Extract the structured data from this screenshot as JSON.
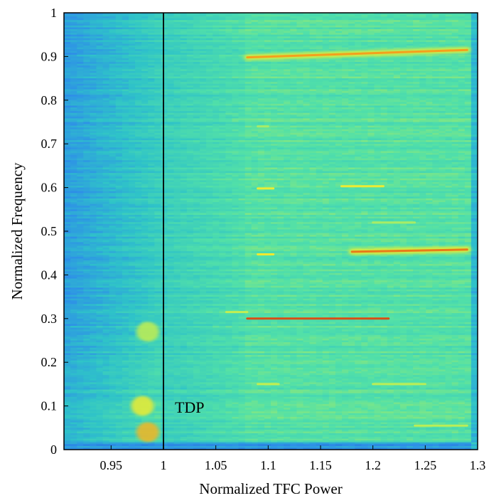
{
  "chart_data": {
    "type": "heatmap",
    "xlabel": "Normalized TFC Power",
    "ylabel": "Normalized Frequency",
    "xlim": [
      0.905,
      1.3
    ],
    "ylim": [
      0,
      1
    ],
    "x_ticks": [
      {
        "value": 0.95,
        "label": "0.95"
      },
      {
        "value": 1.0,
        "label": "1"
      },
      {
        "value": 1.05,
        "label": "1.05"
      },
      {
        "value": 1.1,
        "label": "1.1"
      },
      {
        "value": 1.15,
        "label": "1.15"
      },
      {
        "value": 1.2,
        "label": "1.2"
      },
      {
        "value": 1.25,
        "label": "1.25"
      },
      {
        "value": 1.3,
        "label": "1.3"
      }
    ],
    "y_ticks": [
      {
        "value": 0,
        "label": "0"
      },
      {
        "value": 0.1,
        "label": "0.1"
      },
      {
        "value": 0.2,
        "label": "0.2"
      },
      {
        "value": 0.3,
        "label": "0.3"
      },
      {
        "value": 0.4,
        "label": "0.4"
      },
      {
        "value": 0.5,
        "label": "0.5"
      },
      {
        "value": 0.6,
        "label": "0.6"
      },
      {
        "value": 0.7,
        "label": "0.7"
      },
      {
        "value": 0.8,
        "label": "0.8"
      },
      {
        "value": 0.9,
        "label": "0.9"
      },
      {
        "value": 1,
        "label": "1"
      }
    ],
    "colormap": [
      "#1f5fd6",
      "#2e8fe8",
      "#2fc3c8",
      "#52e0a8",
      "#b6ee5a",
      "#f2ec2f",
      "#f5a31d",
      "#c81e12"
    ],
    "reference_line": {
      "x": 1.0,
      "label": "TDP"
    },
    "ridges": [
      {
        "y": 0.898,
        "x_start": 1.08,
        "x_end": 1.29,
        "y_end": 0.915,
        "intensity": 0.86
      },
      {
        "y": 0.3,
        "x_start": 1.08,
        "x_end": 1.215,
        "intensity": 0.95
      },
      {
        "y": 0.453,
        "x_start": 1.18,
        "x_end": 1.29,
        "y_end": 0.458,
        "intensity": 0.9
      },
      {
        "y": 0.447,
        "x_start": 1.09,
        "x_end": 1.105,
        "intensity": 0.72
      },
      {
        "y": 0.598,
        "x_start": 1.09,
        "x_end": 1.105,
        "intensity": 0.7
      },
      {
        "y": 0.603,
        "x_start": 1.17,
        "x_end": 1.21,
        "intensity": 0.7
      },
      {
        "y": 0.15,
        "x_start": 1.09,
        "x_end": 1.11,
        "intensity": 0.6
      },
      {
        "y": 0.15,
        "x_start": 1.2,
        "x_end": 1.25,
        "intensity": 0.58
      },
      {
        "y": 0.055,
        "x_start": 1.24,
        "x_end": 1.29,
        "intensity": 0.58
      },
      {
        "y": 0.315,
        "x_start": 1.06,
        "x_end": 1.08,
        "intensity": 0.6
      },
      {
        "y": 0.74,
        "x_start": 1.09,
        "x_end": 1.1,
        "intensity": 0.55
      },
      {
        "y": 0.52,
        "x_start": 1.2,
        "x_end": 1.24,
        "intensity": 0.55
      }
    ],
    "blobs": [
      {
        "x": 0.985,
        "y": 0.04,
        "intensity": 0.82
      },
      {
        "x": 0.98,
        "y": 0.1,
        "intensity": 0.7
      },
      {
        "x": 0.985,
        "y": 0.27,
        "intensity": 0.6
      }
    ]
  }
}
